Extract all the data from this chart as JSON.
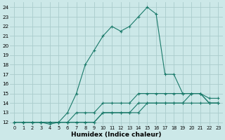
{
  "xlabel": "Humidex (Indice chaleur)",
  "bg_color": "#cce8e8",
  "grid_color": "#aacccc",
  "line_color": "#1a7a6a",
  "xlim": [
    -0.5,
    23.5
  ],
  "ylim": [
    11.7,
    24.5
  ],
  "xticks": [
    0,
    1,
    2,
    3,
    4,
    5,
    6,
    7,
    8,
    9,
    10,
    11,
    12,
    13,
    14,
    15,
    16,
    17,
    18,
    19,
    20,
    21,
    22,
    23
  ],
  "yticks": [
    12,
    13,
    14,
    15,
    16,
    17,
    18,
    19,
    20,
    21,
    22,
    23,
    24
  ],
  "line1_x": [
    0,
    1,
    2,
    3,
    4,
    5,
    6,
    7,
    8,
    9,
    10,
    11,
    12,
    13,
    14,
    15,
    16,
    17,
    18,
    19,
    20,
    21,
    22,
    23
  ],
  "line1_y": [
    12,
    12,
    12,
    12,
    12,
    12,
    12,
    12,
    12,
    12,
    13,
    13,
    13,
    13,
    13,
    14,
    14,
    14,
    14,
    14,
    14,
    14,
    14,
    14
  ],
  "line2_x": [
    0,
    1,
    2,
    3,
    4,
    5,
    6,
    7,
    8,
    9,
    10,
    11,
    12,
    13,
    14,
    15,
    16,
    17,
    18,
    19,
    20,
    21,
    22,
    23
  ],
  "line2_y": [
    12,
    12,
    12,
    12,
    12,
    12,
    12,
    12,
    12,
    12,
    13,
    13,
    13,
    13,
    14,
    14,
    14,
    14,
    14,
    14,
    15,
    15,
    14,
    14
  ],
  "line3_x": [
    0,
    1,
    2,
    3,
    4,
    5,
    6,
    7,
    8,
    9,
    10,
    11,
    12,
    13,
    14,
    15,
    16,
    17,
    18,
    19,
    20,
    21,
    22,
    23
  ],
  "line3_y": [
    12,
    12,
    12,
    12,
    12,
    12,
    12,
    13,
    13,
    13,
    14,
    14,
    14,
    14,
    15,
    15,
    15,
    15,
    15,
    15,
    15,
    15,
    14,
    14
  ],
  "line4_x": [
    1,
    2,
    3,
    4,
    5,
    6,
    7,
    8,
    9,
    10,
    11,
    12,
    13,
    14,
    15,
    16,
    17,
    18,
    19,
    20,
    21,
    22,
    23
  ],
  "line4_y": [
    12,
    12,
    12,
    11.8,
    12,
    13,
    15,
    18,
    19.5,
    21,
    22,
    21.5,
    22,
    23,
    24,
    23.3,
    17,
    17,
    15,
    15,
    15,
    14.5,
    14.5
  ]
}
